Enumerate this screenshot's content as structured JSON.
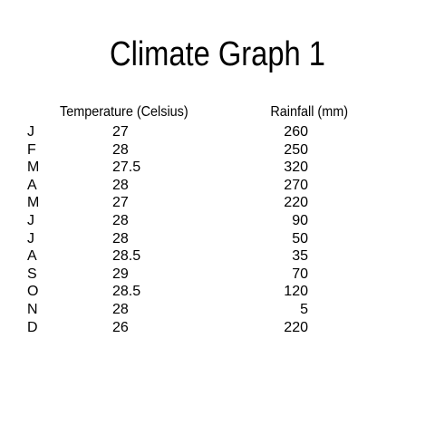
{
  "chart_data": {
    "type": "table",
    "title": "Climate Graph 1",
    "columns": [
      "Temperature (Celsius)",
      "Rainfall (mm)"
    ],
    "rows": [
      {
        "month": "J",
        "temperature": "27",
        "rainfall": "260"
      },
      {
        "month": "F",
        "temperature": "28",
        "rainfall": "250"
      },
      {
        "month": "M",
        "temperature": "27.5",
        "rainfall": "320"
      },
      {
        "month": "A",
        "temperature": "28",
        "rainfall": "270"
      },
      {
        "month": "M",
        "temperature": "27",
        "rainfall": "220"
      },
      {
        "month": "J",
        "temperature": "28",
        "rainfall": "90"
      },
      {
        "month": "J",
        "temperature": "28",
        "rainfall": "50"
      },
      {
        "month": "A",
        "temperature": "28.5",
        "rainfall": "35"
      },
      {
        "month": "S",
        "temperature": "29",
        "rainfall": "70"
      },
      {
        "month": "O",
        "temperature": "28.5",
        "rainfall": "120"
      },
      {
        "month": "N",
        "temperature": "28",
        "rainfall": "5"
      },
      {
        "month": "D",
        "temperature": "26",
        "rainfall": "220"
      }
    ]
  }
}
